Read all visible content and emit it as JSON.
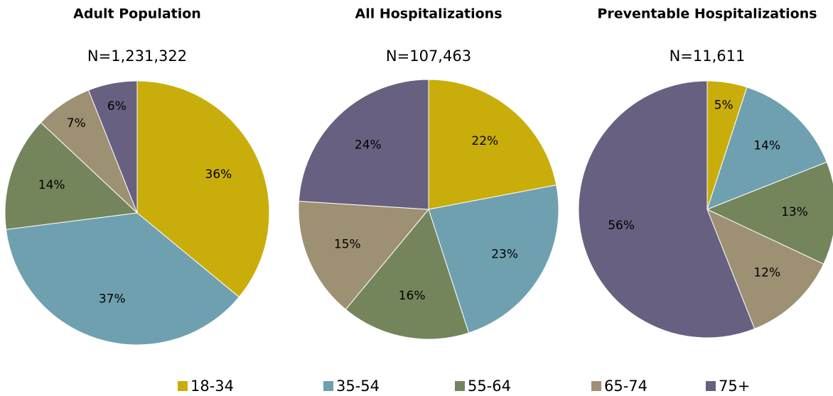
{
  "chart_data": [
    {
      "type": "pie",
      "title": "Adult Population",
      "subtitle": "N=1,231,322",
      "values": [
        36,
        37,
        14,
        7,
        6
      ],
      "value_labels": [
        "36%",
        "37%",
        "14%",
        "7%",
        "6%"
      ]
    },
    {
      "type": "pie",
      "title": "All Hospitalizations",
      "subtitle": "N=107,463",
      "values": [
        22,
        23,
        16,
        15,
        24
      ],
      "value_labels": [
        "22%",
        "23%",
        "16%",
        "15%",
        "24%"
      ]
    },
    {
      "type": "pie",
      "title": "Preventable Hospitalizations",
      "subtitle": "N=11,611",
      "values": [
        5,
        14,
        13,
        12,
        56
      ],
      "value_labels": [
        "5%",
        "14%",
        "13%",
        "12%",
        "56%"
      ]
    }
  ],
  "legend": {
    "categories": [
      "18-34",
      "35-54",
      "55-64",
      "65-74",
      "75+"
    ],
    "colors": [
      "#c9ad0b",
      "#6fa0b0",
      "#74855c",
      "#9e9072",
      "#676080"
    ]
  }
}
